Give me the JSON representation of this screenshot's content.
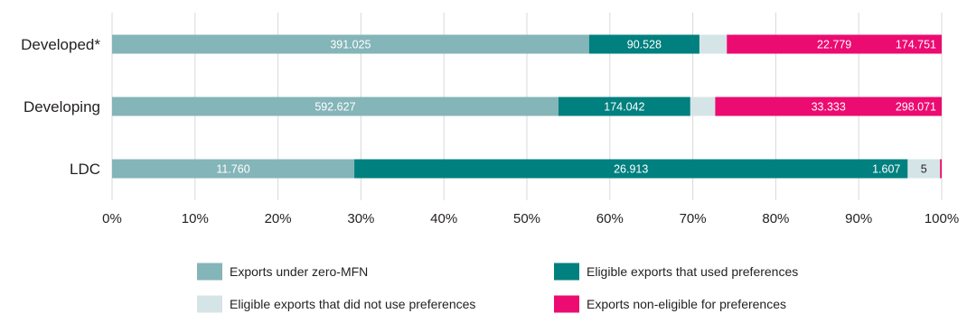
{
  "chart_data": {
    "type": "bar",
    "orientation": "horizontal",
    "stacked": "percent",
    "title": "",
    "xlabel": "",
    "ylabel": "",
    "xlim": [
      0,
      100
    ],
    "x_ticks": [
      0,
      10,
      20,
      30,
      40,
      50,
      60,
      70,
      80,
      90,
      100
    ],
    "x_tick_labels": [
      "0%",
      "10%",
      "20%",
      "30%",
      "40%",
      "50%",
      "60%",
      "70%",
      "80%",
      "90%",
      "100%"
    ],
    "grid": "vertical",
    "legend_position": "bottom",
    "categories": [
      "Developed*",
      "Developing",
      "LDC"
    ],
    "series": [
      {
        "name": "Exports under zero-MFN",
        "color": "#84b5b8",
        "label_color": "#ffffff",
        "share_pct": [
          57.5,
          53.8,
          29.2
        ],
        "labels": [
          "391.025",
          "592.627",
          "11.760"
        ]
      },
      {
        "name": "Eligible exports that used preferences",
        "color": "#00807f",
        "label_color": "#ffffff",
        "share_pct": [
          13.3,
          15.9,
          66.7
        ],
        "labels": [
          "90.528",
          "174.042",
          "26.913"
        ]
      },
      {
        "name": "Eligible exports that did not use preferences",
        "color": "#d5e4e6",
        "label_color": "#231f20",
        "share_pct": [
          3.3,
          3.0,
          3.9
        ],
        "labels": [
          "",
          "",
          "5"
        ]
      },
      {
        "name": "Exports non-eligible for preferences",
        "color": "#ec0b71",
        "label_color": "#ffffff",
        "share_pct": [
          25.9,
          27.3,
          0.2
        ],
        "labels": [
          "22.779",
          "33.333",
          ""
        ]
      }
    ],
    "annotations": [
      {
        "category": "Developed*",
        "text": "174.751"
      },
      {
        "category": "Developing",
        "text": "298.071"
      },
      {
        "category": "LDC",
        "text": "1.607"
      }
    ]
  }
}
